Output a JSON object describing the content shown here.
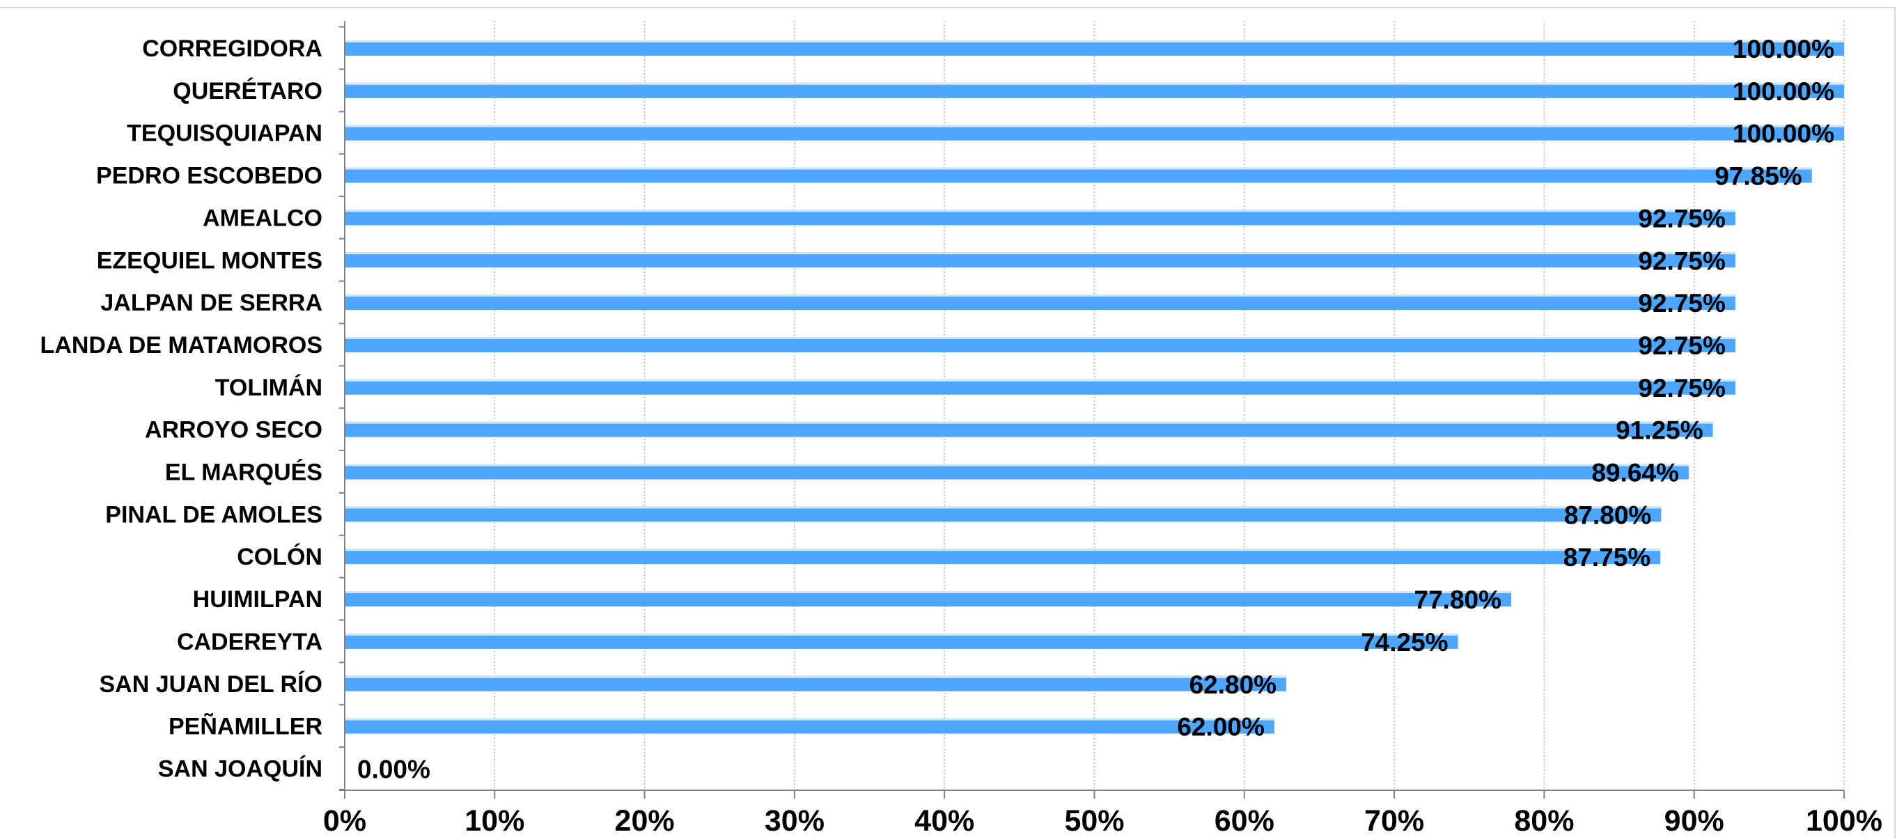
{
  "chart_data": {
    "type": "bar",
    "orientation": "horizontal",
    "title": "",
    "xlabel": "",
    "ylabel": "",
    "categories": [
      "CORREGIDORA",
      "QUERÉTARO",
      "TEQUISQUIAPAN",
      "PEDRO ESCOBEDO",
      "AMEALCO",
      "EZEQUIEL MONTES",
      "JALPAN DE SERRA",
      "LANDA DE MATAMOROS",
      "TOLIMÁN",
      "ARROYO SECO",
      "EL MARQUÉS",
      "PINAL DE AMOLES",
      "COLÓN",
      "HUIMILPAN",
      "CADEREYTA",
      "SAN JUAN DEL RÍO",
      "PEÑAMILLER",
      "SAN JOAQUÍN"
    ],
    "values": [
      100.0,
      100.0,
      100.0,
      97.85,
      92.75,
      92.75,
      92.75,
      92.75,
      92.75,
      91.25,
      89.64,
      87.8,
      87.75,
      77.8,
      74.25,
      62.8,
      62.0,
      0.0
    ],
    "value_labels": [
      "100.00%",
      "100.00%",
      "100.00%",
      "97.85%",
      "92.75%",
      "92.75%",
      "92.75%",
      "92.75%",
      "92.75%",
      "91.25%",
      "89.64%",
      "87.80%",
      "87.75%",
      "77.80%",
      "74.25%",
      "62.80%",
      "62.00%",
      "0.00%"
    ],
    "xlim": [
      0,
      100
    ],
    "x_ticks": [
      0,
      10,
      20,
      30,
      40,
      50,
      60,
      70,
      80,
      90,
      100
    ],
    "x_tick_labels": [
      "0%",
      "10%",
      "20%",
      "30%",
      "40%",
      "50%",
      "60%",
      "70%",
      "80%",
      "90%",
      "100%"
    ],
    "grid": "vertical-dotted",
    "legend": "none",
    "colors": {
      "bar": "#4da6ff",
      "bar_highlight": "#cce6ff",
      "axis": "#808080",
      "grid": "#b3b3b3",
      "frame": "#d9d9d9",
      "text": "#000000"
    }
  }
}
